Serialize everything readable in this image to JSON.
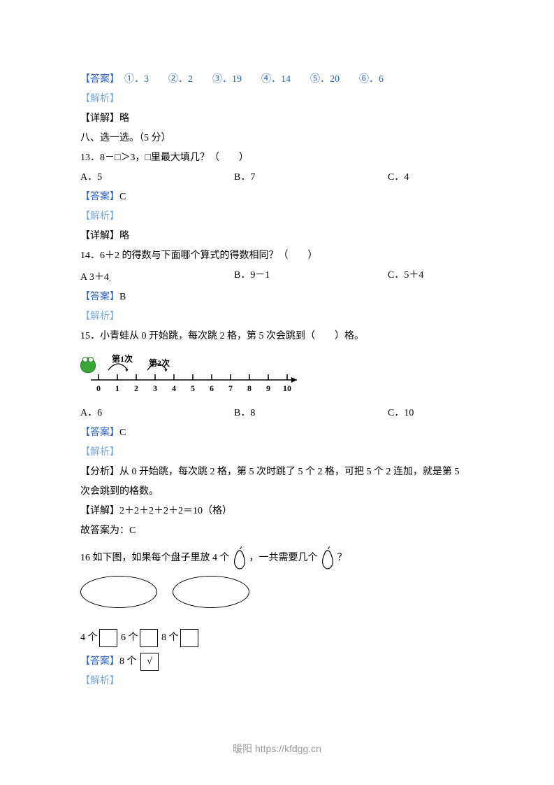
{
  "answers_top": {
    "label": "【答案】",
    "items": "　①．3　　②．2　　③．19　　④．14　　⑤．20　　⑥．6",
    "color": "#2862c6"
  },
  "analysis_label": "【解析】",
  "detail_label_short": "【详解】略",
  "section8": "八、选一选。（5 分）",
  "q13": {
    "text": "13．8－□＞3，□里最大填几？（　　）",
    "a": "A．5",
    "b": "B．7",
    "c": "C．4",
    "answer_label": "【答案】",
    "answer": "C"
  },
  "q14": {
    "text": "14．6＋2 的得数与下面哪个算式的得数相同？（　　）",
    "a": "A  3＋4",
    "b": "B．9－1",
    "c": "C．5＋4",
    "answer_label": "【答案】",
    "answer": "B"
  },
  "q15": {
    "text": "15．小青蛙从 0 开始跳，每次跳 2 格，第 5 次会跳到（　　）格。",
    "jump1": "第1次",
    "jump2": "第2次",
    "ticks": [
      "0",
      "1",
      "2",
      "3",
      "4",
      "5",
      "6",
      "7",
      "8",
      "9",
      "10"
    ],
    "a": "A．6",
    "b": "B．8",
    "c": "C．10",
    "answer_label": "【答案】",
    "answer": "C",
    "analysis_line": "【分析】从 0 开始跳，每次跳 2 格，第 5 次时跳了 5 个 2 格，可把 5 个 2 连加，就是第 5",
    "analysis_line2": "次会跳到的格数。",
    "detail": "【详解】2＋2＋2＋2＋2＝10（格）",
    "conclusion": "故答案为：C"
  },
  "q16": {
    "prefix": "16  如下图，如果每个盘子里放 4 个",
    "mid": "，一共需要几个",
    "suffix": "？",
    "opt1_pre": "4 个",
    "opt2_pre": "6 个",
    "opt3_pre": "8 个",
    "answer_label": "【答案】",
    "answer_pre": "8 个",
    "answer_mark": "√"
  },
  "colors": {
    "blue": "#2862c6",
    "light_blue": "#7da8d8",
    "text": "#000000",
    "footer": "#9a9a9a",
    "frog": "#3aa63a"
  },
  "footer": "暖阳 https://kfdgg.cn"
}
